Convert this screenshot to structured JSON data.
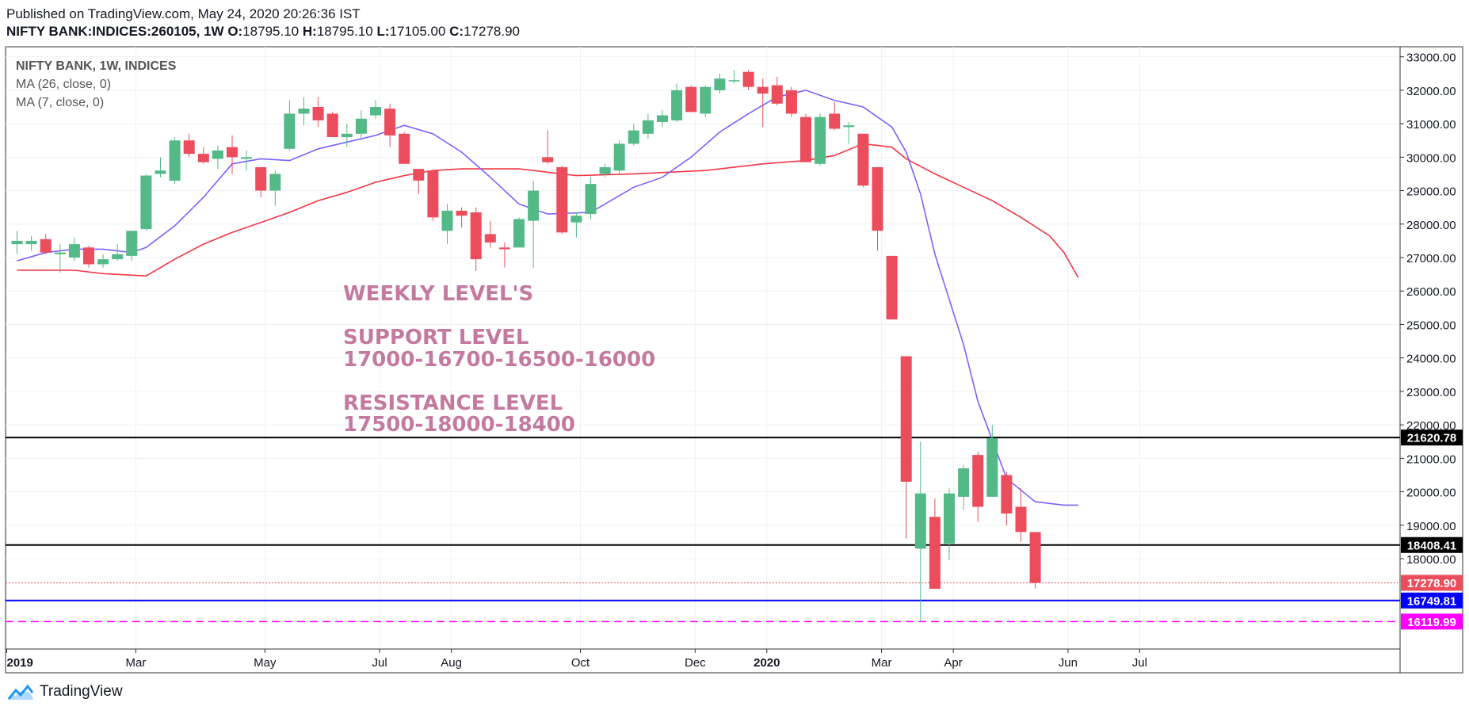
{
  "header": {
    "published": "Published on TradingView.com, May 24, 2020 20:26:36 IST",
    "symbol": "NIFTY BANK:INDICES:260105, 1W",
    "o_label": "O:",
    "o_value": "18795.10",
    "h_label": "H:",
    "h_value": "18795.10",
    "l_label": "L:",
    "l_value": "17105.00",
    "c_label": "C:",
    "c_value": "17278.90"
  },
  "legend": [
    "NIFTY BANK, 1W, INDICES",
    "MA (26, close, 0)",
    "MA (7, close, 0)"
  ],
  "annotation": {
    "weekly": "WEEKLY LEVEL'S",
    "support_title": "SUPPORT LEVEL",
    "support_levels": "17000-16700-16500-16000",
    "resistance_title": "RESISTANCE LEVEL",
    "resistance_levels": "17500-18000-18400"
  },
  "brand": {
    "name": "TradingView"
  },
  "colors": {
    "up": "#53b987",
    "down": "#eb4d5c",
    "ma26": "#f23645",
    "ma7": "#7b61ff",
    "annotation": "#c47aa0",
    "support_line": "#0000ff",
    "support2_line": "#ff00ff"
  },
  "chart_data": {
    "type": "candlestick",
    "y_range": [
      15300,
      33300
    ],
    "y_ticks": [
      18000,
      19000,
      20000,
      21000,
      22000,
      23000,
      24000,
      25000,
      26000,
      27000,
      28000,
      29000,
      30000,
      31000,
      32000,
      33000
    ],
    "x_ticks": [
      {
        "label": "2019",
        "idx": 0,
        "bold": true
      },
      {
        "label": "Mar",
        "idx": 9
      },
      {
        "label": "May",
        "idx": 18
      },
      {
        "label": "Jul",
        "idx": 26
      },
      {
        "label": "Aug",
        "idx": 31
      },
      {
        "label": "Oct",
        "idx": 40
      },
      {
        "label": "Dec",
        "idx": 48
      },
      {
        "label": "2020",
        "idx": 53,
        "bold": true
      },
      {
        "label": "Mar",
        "idx": 61
      },
      {
        "label": "Apr",
        "idx": 66
      },
      {
        "label": "Jun",
        "idx": 74
      },
      {
        "label": "Jul",
        "idx": 79
      }
    ],
    "candles": [
      {
        "o": 27400,
        "h": 27800,
        "l": 27100,
        "c": 27500
      },
      {
        "o": 27400,
        "h": 27650,
        "l": 27200,
        "c": 27500
      },
      {
        "o": 27550,
        "h": 27700,
        "l": 27100,
        "c": 27150
      },
      {
        "o": 27100,
        "h": 27400,
        "l": 26550,
        "c": 27150
      },
      {
        "o": 27000,
        "h": 27600,
        "l": 26900,
        "c": 27400
      },
      {
        "o": 27300,
        "h": 27350,
        "l": 26700,
        "c": 26800
      },
      {
        "o": 26800,
        "h": 27100,
        "l": 26700,
        "c": 26950
      },
      {
        "o": 26950,
        "h": 27400,
        "l": 26900,
        "c": 27100
      },
      {
        "o": 27050,
        "h": 27800,
        "l": 26900,
        "c": 27800
      },
      {
        "o": 27850,
        "h": 29500,
        "l": 27800,
        "c": 29450
      },
      {
        "o": 29500,
        "h": 30000,
        "l": 29400,
        "c": 29600
      },
      {
        "o": 29300,
        "h": 30600,
        "l": 29200,
        "c": 30500
      },
      {
        "o": 30500,
        "h": 30700,
        "l": 30000,
        "c": 30100
      },
      {
        "o": 30100,
        "h": 30300,
        "l": 29800,
        "c": 29850
      },
      {
        "o": 29950,
        "h": 30350,
        "l": 29650,
        "c": 30200
      },
      {
        "o": 30300,
        "h": 30650,
        "l": 29500,
        "c": 30000
      },
      {
        "o": 29950,
        "h": 30200,
        "l": 29600,
        "c": 30000
      },
      {
        "o": 29700,
        "h": 29700,
        "l": 28800,
        "c": 29000
      },
      {
        "o": 29000,
        "h": 29600,
        "l": 28550,
        "c": 29500
      },
      {
        "o": 30250,
        "h": 31700,
        "l": 30200,
        "c": 31300
      },
      {
        "o": 31300,
        "h": 31800,
        "l": 30950,
        "c": 31450
      },
      {
        "o": 31500,
        "h": 31800,
        "l": 30900,
        "c": 31100
      },
      {
        "o": 31300,
        "h": 31350,
        "l": 30600,
        "c": 30600
      },
      {
        "o": 30600,
        "h": 31000,
        "l": 30300,
        "c": 30700
      },
      {
        "o": 30700,
        "h": 31400,
        "l": 30500,
        "c": 31150
      },
      {
        "o": 31250,
        "h": 31700,
        "l": 31150,
        "c": 31500
      },
      {
        "o": 31450,
        "h": 31600,
        "l": 30300,
        "c": 30650
      },
      {
        "o": 30700,
        "h": 30750,
        "l": 29800,
        "c": 29800
      },
      {
        "o": 29650,
        "h": 29650,
        "l": 28900,
        "c": 29300
      },
      {
        "o": 29600,
        "h": 29600,
        "l": 28100,
        "c": 28200
      },
      {
        "o": 27800,
        "h": 28600,
        "l": 27400,
        "c": 28400
      },
      {
        "o": 28400,
        "h": 28500,
        "l": 27900,
        "c": 28250
      },
      {
        "o": 28350,
        "h": 28500,
        "l": 26600,
        "c": 26950
      },
      {
        "o": 27700,
        "h": 28100,
        "l": 27300,
        "c": 27450
      },
      {
        "o": 27300,
        "h": 27450,
        "l": 26700,
        "c": 27250
      },
      {
        "o": 27300,
        "h": 28200,
        "l": 27300,
        "c": 28150
      },
      {
        "o": 28100,
        "h": 29300,
        "l": 26700,
        "c": 29000
      },
      {
        "o": 30000,
        "h": 30800,
        "l": 29800,
        "c": 29850
      },
      {
        "o": 29700,
        "h": 29750,
        "l": 27700,
        "c": 27750
      },
      {
        "o": 28050,
        "h": 28350,
        "l": 27600,
        "c": 28250
      },
      {
        "o": 28300,
        "h": 29400,
        "l": 28150,
        "c": 29200
      },
      {
        "o": 29500,
        "h": 29800,
        "l": 29400,
        "c": 29700
      },
      {
        "o": 29600,
        "h": 30500,
        "l": 29500,
        "c": 30400
      },
      {
        "o": 30400,
        "h": 31000,
        "l": 30350,
        "c": 30800
      },
      {
        "o": 30700,
        "h": 31300,
        "l": 30550,
        "c": 31100
      },
      {
        "o": 31050,
        "h": 31400,
        "l": 30900,
        "c": 31250
      },
      {
        "o": 31100,
        "h": 32200,
        "l": 31050,
        "c": 32000
      },
      {
        "o": 32100,
        "h": 32150,
        "l": 31400,
        "c": 31350
      },
      {
        "o": 31300,
        "h": 32150,
        "l": 31200,
        "c": 32100
      },
      {
        "o": 32000,
        "h": 32500,
        "l": 31900,
        "c": 32350
      },
      {
        "o": 32300,
        "h": 32600,
        "l": 32200,
        "c": 32300
      },
      {
        "o": 32550,
        "h": 32600,
        "l": 32000,
        "c": 32100
      },
      {
        "o": 32100,
        "h": 32350,
        "l": 30900,
        "c": 31900
      },
      {
        "o": 32150,
        "h": 32400,
        "l": 31550,
        "c": 31600
      },
      {
        "o": 32000,
        "h": 32100,
        "l": 31200,
        "c": 31300
      },
      {
        "o": 31200,
        "h": 31300,
        "l": 29850,
        "c": 29850
      },
      {
        "o": 29800,
        "h": 31300,
        "l": 29750,
        "c": 31200
      },
      {
        "o": 31300,
        "h": 31650,
        "l": 30800,
        "c": 30850
      },
      {
        "o": 30900,
        "h": 31050,
        "l": 30400,
        "c": 30950
      },
      {
        "o": 30700,
        "h": 30700,
        "l": 29100,
        "c": 29150
      },
      {
        "o": 29700,
        "h": 29700,
        "l": 27200,
        "c": 27800
      },
      {
        "o": 27050,
        "h": 27050,
        "l": 25150,
        "c": 25150
      },
      {
        "o": 24050,
        "h": 24050,
        "l": 18600,
        "c": 20300
      },
      {
        "o": 18300,
        "h": 21500,
        "l": 16119,
        "c": 19950
      },
      {
        "o": 19250,
        "h": 19800,
        "l": 17100,
        "c": 17100
      },
      {
        "o": 18450,
        "h": 20100,
        "l": 17950,
        "c": 19950
      },
      {
        "o": 19850,
        "h": 20800,
        "l": 19450,
        "c": 20700
      },
      {
        "o": 21100,
        "h": 21200,
        "l": 19100,
        "c": 19550
      },
      {
        "o": 19850,
        "h": 22000,
        "l": 19850,
        "c": 21600
      },
      {
        "o": 20500,
        "h": 20600,
        "l": 19000,
        "c": 19350
      },
      {
        "o": 19550,
        "h": 20100,
        "l": 18500,
        "c": 18800
      },
      {
        "o": 18795.1,
        "h": 18795.1,
        "l": 17105,
        "c": 17278.9
      }
    ],
    "ma26": [
      [
        0,
        26620
      ],
      [
        4,
        26620
      ],
      [
        6,
        26520
      ],
      [
        9,
        26450
      ],
      [
        11,
        26950
      ],
      [
        13,
        27400
      ],
      [
        15,
        27750
      ],
      [
        17,
        28050
      ],
      [
        19,
        28350
      ],
      [
        21,
        28700
      ],
      [
        23,
        28950
      ],
      [
        25,
        29250
      ],
      [
        27,
        29450
      ],
      [
        29,
        29600
      ],
      [
        31,
        29650
      ],
      [
        35,
        29650
      ],
      [
        39,
        29450
      ],
      [
        43,
        29500
      ],
      [
        48,
        29600
      ],
      [
        52,
        29800
      ],
      [
        55,
        29900
      ],
      [
        57,
        30050
      ],
      [
        59,
        30400
      ],
      [
        61,
        30300
      ],
      [
        62,
        29950
      ],
      [
        64,
        29500
      ],
      [
        66,
        29100
      ],
      [
        68,
        28700
      ],
      [
        70,
        28200
      ],
      [
        72,
        27650
      ],
      [
        73,
        27150
      ],
      [
        74,
        26400
      ]
    ],
    "ma7": [
      [
        0,
        26900
      ],
      [
        2,
        27150
      ],
      [
        4,
        27250
      ],
      [
        6,
        27250
      ],
      [
        8,
        27150
      ],
      [
        9,
        27300
      ],
      [
        11,
        27950
      ],
      [
        13,
        28800
      ],
      [
        15,
        29800
      ],
      [
        17,
        29950
      ],
      [
        19,
        29900
      ],
      [
        21,
        30250
      ],
      [
        23,
        30450
      ],
      [
        25,
        30650
      ],
      [
        27,
        30950
      ],
      [
        29,
        30700
      ],
      [
        31,
        30150
      ],
      [
        33,
        29400
      ],
      [
        35,
        28600
      ],
      [
        37,
        28300
      ],
      [
        40,
        28350
      ],
      [
        43,
        29100
      ],
      [
        45,
        29400
      ],
      [
        47,
        30000
      ],
      [
        49,
        30750
      ],
      [
        51,
        31300
      ],
      [
        53,
        31800
      ],
      [
        55,
        32000
      ],
      [
        57,
        31700
      ],
      [
        59,
        31500
      ],
      [
        61,
        30900
      ],
      [
        62,
        30150
      ],
      [
        63,
        28900
      ],
      [
        64,
        27100
      ],
      [
        66,
        24400
      ],
      [
        67,
        22700
      ],
      [
        69,
        20400
      ],
      [
        71,
        19700
      ],
      [
        73,
        19600
      ],
      [
        74,
        19600
      ]
    ],
    "levels": [
      {
        "value": 21620.78,
        "label": "21620.78",
        "style": "solid",
        "color": "#000000"
      },
      {
        "value": 18408.41,
        "label": "18408.41",
        "style": "solid",
        "color": "#000000"
      },
      {
        "value": 17278.9,
        "label": "17278.90",
        "style": "dotted",
        "color": "#eb4d5c"
      },
      {
        "value": 16749.81,
        "label": "16749.81",
        "style": "solid",
        "color": "#0000ff"
      },
      {
        "value": 16119.99,
        "label": "16119.99",
        "style": "dashed",
        "color": "#ff00ff"
      }
    ]
  }
}
